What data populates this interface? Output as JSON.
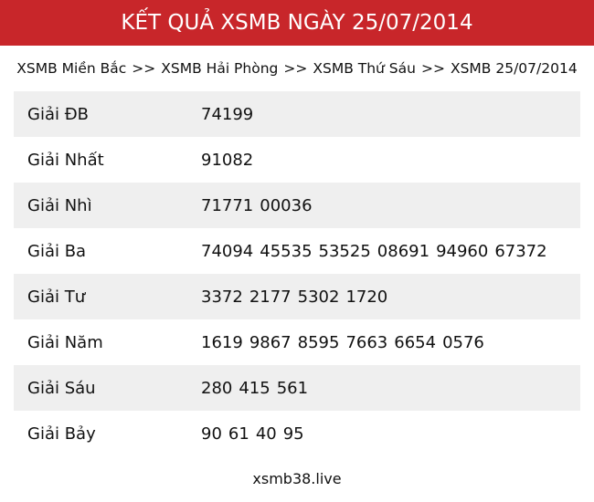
{
  "header": {
    "title": "KẾT QUẢ XSMB NGÀY 25/07/2014"
  },
  "breadcrumb": {
    "items": [
      "XSMB Miền Bắc",
      "XSMB Hải Phòng",
      "XSMB Thứ Sáu",
      "XSMB 25/07/2014"
    ],
    "separator": ">>"
  },
  "table": {
    "rows": [
      {
        "label": "Giải ĐB",
        "numbers": [
          "74199"
        ]
      },
      {
        "label": "Giải Nhất",
        "numbers": [
          "91082"
        ]
      },
      {
        "label": "Giải Nhì",
        "numbers": [
          "71771",
          "00036"
        ]
      },
      {
        "label": "Giải Ba",
        "numbers": [
          "74094",
          "45535",
          "53525",
          "08691",
          "94960",
          "67372"
        ]
      },
      {
        "label": "Giải Tư",
        "numbers": [
          "3372",
          "2177",
          "5302",
          "1720"
        ]
      },
      {
        "label": "Giải Năm",
        "numbers": [
          "1619",
          "9867",
          "8595",
          "7663",
          "6654",
          "0576"
        ]
      },
      {
        "label": "Giải Sáu",
        "numbers": [
          "280",
          "415",
          "561"
        ]
      },
      {
        "label": "Giải Bảy",
        "numbers": [
          "90",
          "61",
          "40",
          "95"
        ]
      }
    ]
  },
  "footer": {
    "site": "xsmb38.live"
  }
}
